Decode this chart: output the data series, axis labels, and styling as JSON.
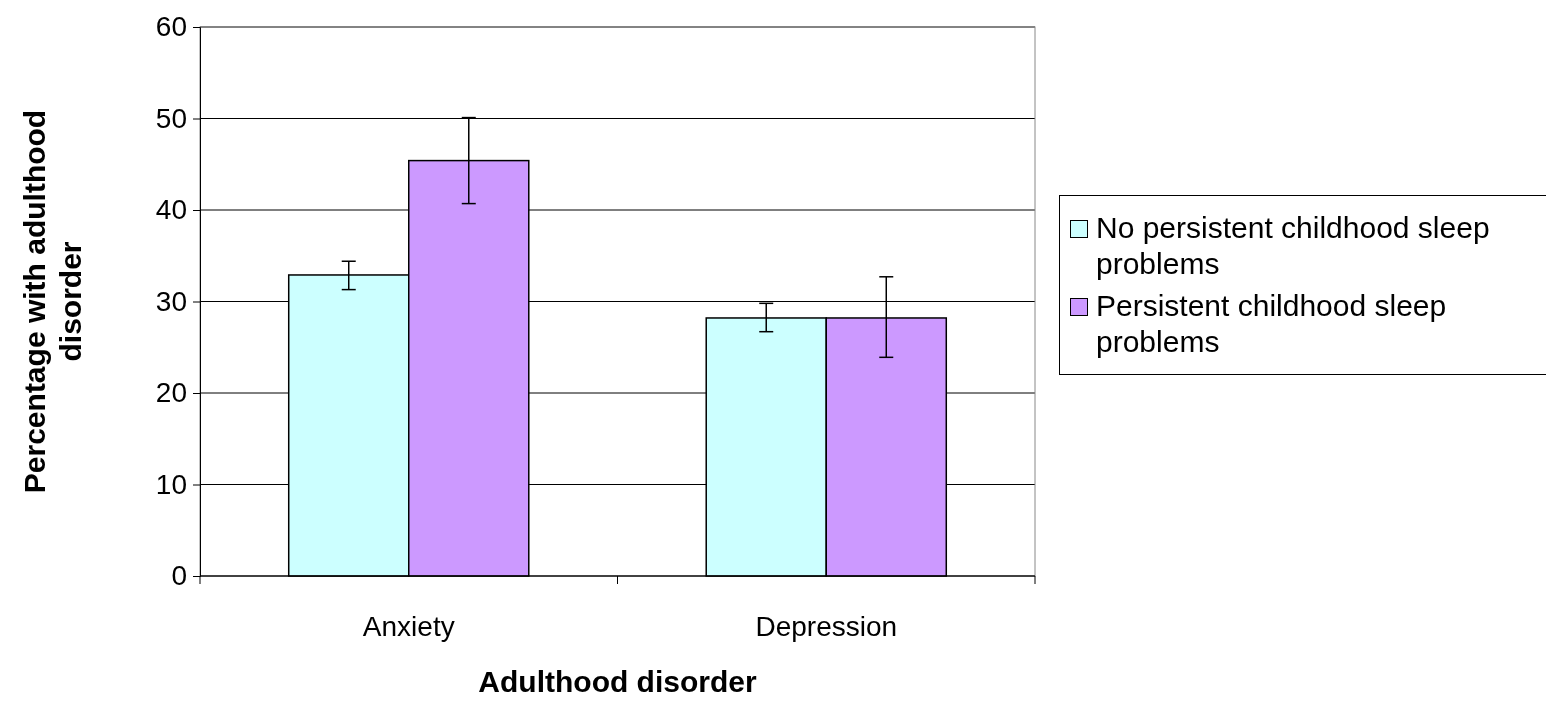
{
  "chart_data": {
    "type": "bar",
    "xlabel": "Adulthood disorder",
    "ylabel": "Percentage with adulthood disorder",
    "categories": [
      "Anxiety",
      "Depression"
    ],
    "series": [
      {
        "name": "No persistent childhood sleep problems",
        "color": "#ccffff",
        "values": [
          32.9,
          28.2
        ],
        "errors": [
          [
            31.3,
            34.4
          ],
          [
            26.7,
            29.8
          ]
        ]
      },
      {
        "name": "Persistent childhood sleep problems",
        "color": "#cc99ff",
        "values": [
          45.4,
          28.2
        ],
        "errors": [
          [
            40.7,
            50.1
          ],
          [
            23.9,
            32.7
          ]
        ]
      }
    ],
    "ylim": [
      0,
      60
    ],
    "yticks": [
      0,
      10,
      20,
      30,
      40,
      50,
      60
    ],
    "grid": "y",
    "legend": "right"
  }
}
